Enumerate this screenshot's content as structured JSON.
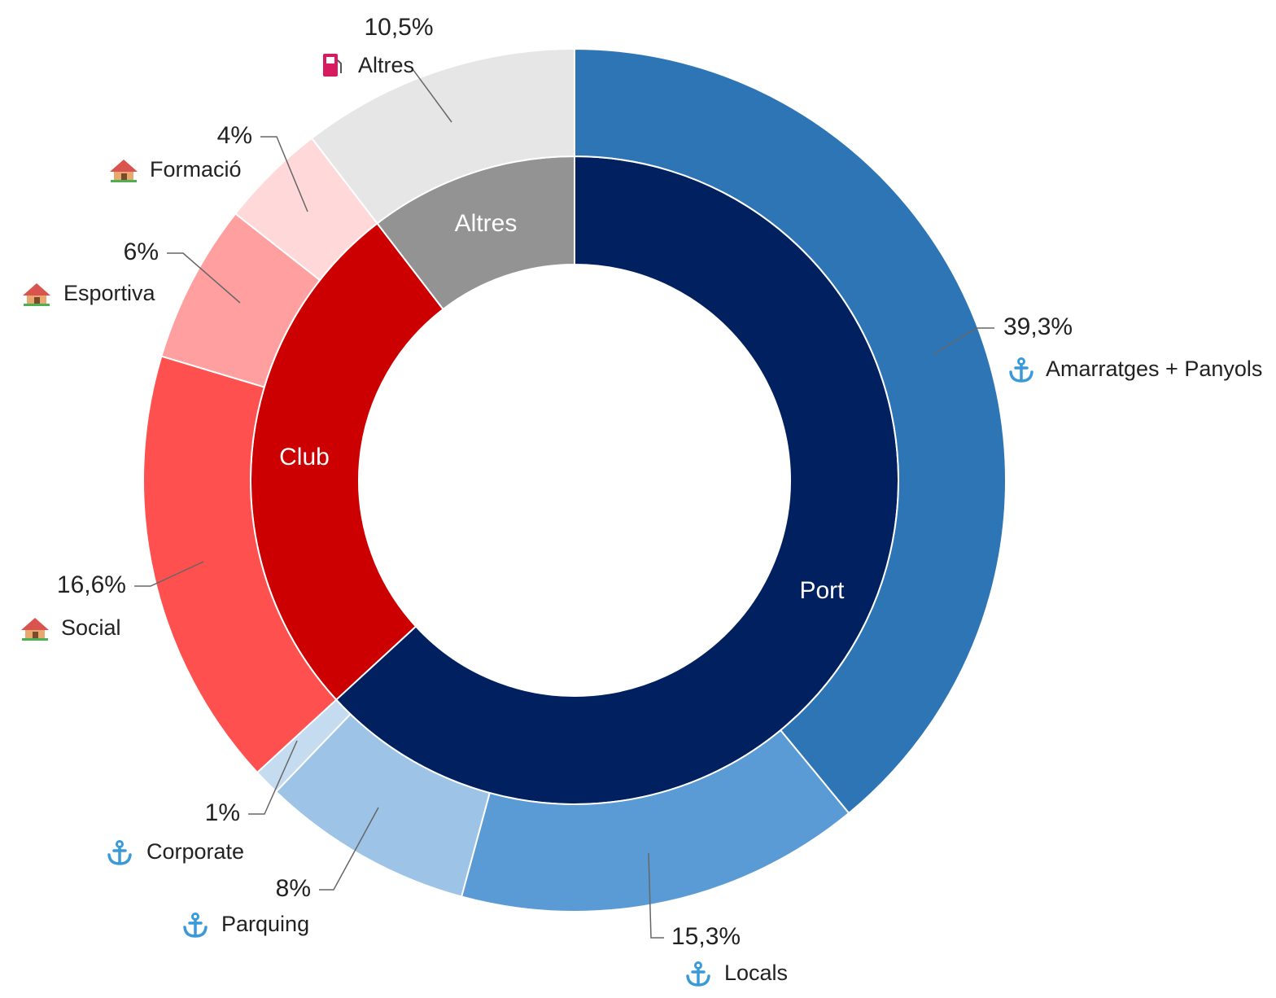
{
  "chart_data": {
    "type": "donut",
    "rings": [
      {
        "categories": [
          "Port",
          "Club",
          "Altres"
        ],
        "values": [
          63.6,
          26.6,
          10.5
        ],
        "colors": [
          "#002060",
          "#cc0000",
          "#939393"
        ]
      },
      {
        "categories": [
          "Amarratges + Panyols",
          "Locals",
          "Parquing",
          "Corporate",
          "Social",
          "Esportiva",
          "Formació",
          "Altres"
        ],
        "values": [
          39.3,
          15.3,
          8,
          1,
          16.6,
          6,
          4,
          10.5
        ],
        "value_labels": [
          "39,3%",
          "15,3%",
          "8%",
          "1%",
          "16,6%",
          "6%",
          "4%",
          "10,5%"
        ],
        "colors": [
          "#2e75b6",
          "#5b9bd5",
          "#9dc3e6",
          "#c5dbef",
          "#ff5050",
          "#ff9f9f",
          "#ffd9d9",
          "#e6e6e6"
        ]
      }
    ]
  }
}
